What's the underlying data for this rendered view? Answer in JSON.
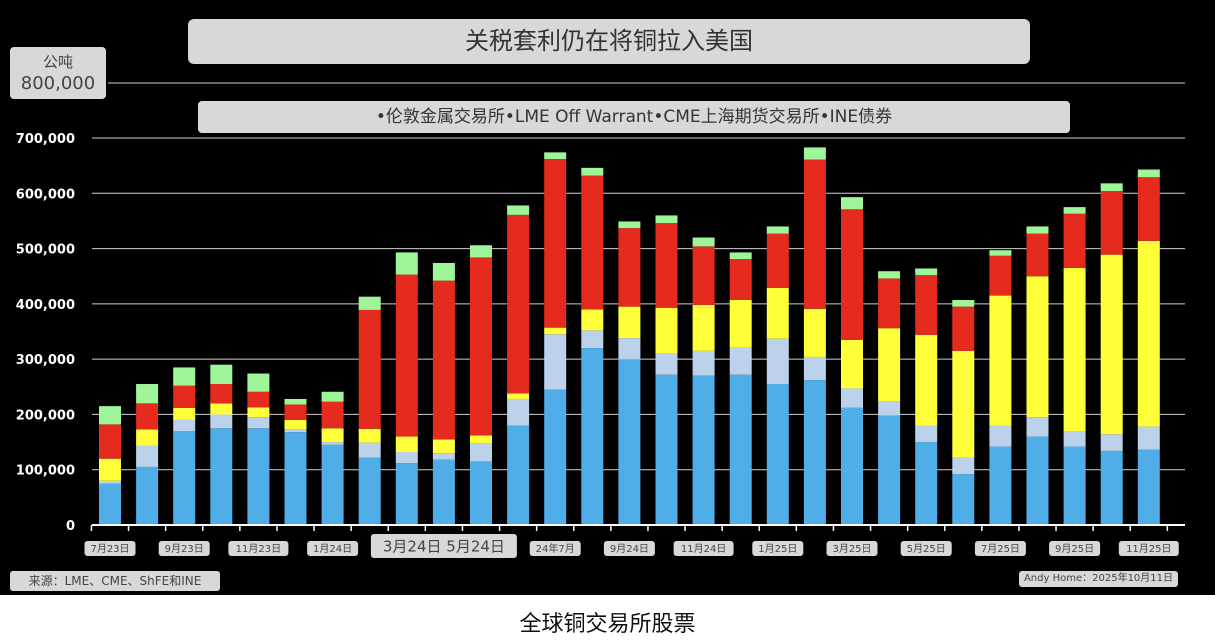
{
  "title": "关税套利仍在将铜拉入美国",
  "unit_label": "公吨",
  "unit_value": "800,000",
  "legend_text": "•伦敦金属交易所•LME Off Warrant•CME上海期货交易所•INE债券",
  "source": "来源：LME、CME、ShFE和INE",
  "credit": "Andy Home：2025年10月11日",
  "caption": "全球铜交易所股票",
  "colors": {
    "lme": "#4faee8",
    "lme_off_warrant": "#bcd1ea",
    "cme": "#ffff3a",
    "shfe": "#e52b1d",
    "ine": "#9ef59a"
  },
  "chart_data": {
    "type": "bar",
    "stacked": true,
    "title": "关税套利仍在将铜拉入美国",
    "ylabel": "公吨",
    "ylim": [
      0,
      700000
    ],
    "yticks": [
      "0",
      "100,000",
      "200,000",
      "300,000",
      "400,000",
      "500,000",
      "600,000",
      "700,000"
    ],
    "grid": true,
    "x_tick_labels": [
      {
        "label": "7月23日",
        "bar": 0
      },
      {
        "label": "9月23日",
        "bar": 2
      },
      {
        "label": "11月23日",
        "bar": 4
      },
      {
        "label": "1月24日",
        "bar": 6
      },
      {
        "label": "3月24日 5月24日",
        "bar": 9,
        "large": true
      },
      {
        "label": "24年7月",
        "bar": 12
      },
      {
        "label": "9月24日",
        "bar": 14
      },
      {
        "label": "11月24日",
        "bar": 16
      },
      {
        "label": "1月25日",
        "bar": 18
      },
      {
        "label": "3月25日",
        "bar": 20
      },
      {
        "label": "5月25日",
        "bar": 22
      },
      {
        "label": "7月25日",
        "bar": 24
      },
      {
        "label": "9月25日",
        "bar": 26
      },
      {
        "label": "11月25日",
        "bar": 28
      }
    ],
    "series": [
      {
        "key": "lme",
        "values": [
          75000,
          105000,
          170000,
          175000,
          175000,
          168000,
          145000,
          122000,
          112000,
          118000,
          115000,
          180000,
          245000,
          320000,
          300000,
          272000,
          270000,
          272000,
          255000,
          262000,
          212000,
          198000,
          150000,
          92000,
          142000,
          160000,
          142000,
          134000,
          136000
        ]
      },
      {
        "key": "lme_off_warrant",
        "values": [
          5000,
          38000,
          20000,
          25000,
          20000,
          5000,
          5000,
          27000,
          20000,
          12000,
          32000,
          48000,
          100000,
          32000,
          38000,
          38000,
          45000,
          50000,
          82000,
          42000,
          35000,
          25000,
          30000,
          30000,
          38000,
          35000,
          28000,
          30000,
          42000
        ]
      },
      {
        "key": "cme",
        "values": [
          40000,
          30000,
          22000,
          20000,
          18000,
          17000,
          25000,
          25000,
          28000,
          25000,
          15000,
          10000,
          12000,
          38000,
          57000,
          83000,
          83000,
          85000,
          92000,
          87000,
          88000,
          133000,
          164000,
          193000,
          235000,
          255000,
          295000,
          325000,
          336000
        ]
      },
      {
        "key": "shfe",
        "values": [
          62000,
          47000,
          40000,
          35000,
          28000,
          28000,
          48000,
          215000,
          293000,
          287000,
          322000,
          323000,
          305000,
          242000,
          142000,
          153000,
          106000,
          74000,
          98000,
          270000,
          236000,
          90000,
          108000,
          80000,
          72000,
          77000,
          98000,
          115000,
          115000
        ]
      },
      {
        "key": "ine",
        "values": [
          33000,
          35000,
          33000,
          35000,
          33000,
          10000,
          18000,
          24000,
          40000,
          32000,
          22000,
          17000,
          12000,
          14000,
          12000,
          14000,
          16000,
          12000,
          13000,
          22000,
          22000,
          13000,
          12000,
          12000,
          10000,
          13000,
          12000,
          14000,
          14000
        ]
      }
    ]
  }
}
